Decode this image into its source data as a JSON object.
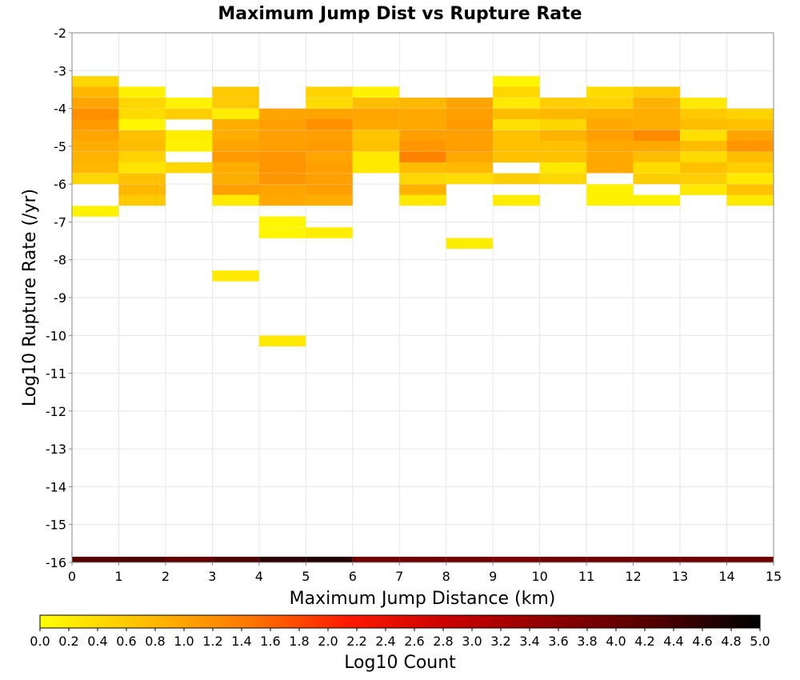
{
  "chart_data": {
    "type": "heatmap",
    "title": "Maximum Jump Dist vs Rupture Rate",
    "xlabel": "Maximum Jump Distance (km)",
    "ylabel": "Log10 Rupture Rate (/yr)",
    "xlim": [
      0,
      15
    ],
    "ylim": [
      -16,
      -2
    ],
    "x_ticks": [
      "0",
      "1",
      "2",
      "3",
      "4",
      "5",
      "6",
      "7",
      "8",
      "9",
      "10",
      "11",
      "12",
      "13",
      "14",
      "15"
    ],
    "y_ticks": [
      "-2",
      "-3",
      "-4",
      "-5",
      "-6",
      "-7",
      "-8",
      "-9",
      "-10",
      "-11",
      "-12",
      "-13",
      "-14",
      "-15",
      "-16"
    ],
    "grid": true,
    "x_bin_width": 1,
    "y_bin_height": 0.2857,
    "colorbar": {
      "label": "Log10 Count",
      "range": [
        0,
        5
      ],
      "ticks": [
        "0.0",
        "0.2",
        "0.4",
        "0.6",
        "0.8",
        "1.0",
        "1.2",
        "1.4",
        "1.6",
        "1.8",
        "2.0",
        "2.2",
        "2.4",
        "2.6",
        "2.8",
        "3.0",
        "3.2",
        "3.4",
        "3.6",
        "3.8",
        "4.0",
        "4.2",
        "4.4",
        "4.6",
        "4.8",
        "5.0"
      ],
      "colors": [
        "#ffff00",
        "#ffc000",
        "#ff7a00",
        "#ff1a00",
        "#c80000",
        "#8c0000",
        "#500000",
        "#000000"
      ]
    },
    "cells": [
      [
        0,
        -3.43,
        0.45
      ],
      [
        0,
        -3.71,
        0.8
      ],
      [
        0,
        -4.0,
        1.0
      ],
      [
        0,
        -4.29,
        1.2
      ],
      [
        0,
        -4.57,
        1.1
      ],
      [
        0,
        -4.86,
        1.0
      ],
      [
        0,
        -5.14,
        0.9
      ],
      [
        0,
        -5.43,
        0.85
      ],
      [
        0,
        -5.71,
        0.8
      ],
      [
        0,
        -6.0,
        0.45
      ],
      [
        0,
        -6.86,
        0.15
      ],
      [
        1,
        -3.71,
        0.15
      ],
      [
        1,
        -4.0,
        0.45
      ],
      [
        1,
        -4.29,
        0.4
      ],
      [
        1,
        -4.57,
        0.1
      ],
      [
        1,
        -4.86,
        0.7
      ],
      [
        1,
        -5.14,
        0.75
      ],
      [
        1,
        -5.43,
        0.5
      ],
      [
        1,
        -5.71,
        0.3
      ],
      [
        1,
        -6.0,
        0.7
      ],
      [
        1,
        -6.29,
        0.8
      ],
      [
        1,
        -6.57,
        0.6
      ],
      [
        2,
        -4.0,
        0.15
      ],
      [
        2,
        -4.29,
        0.55
      ],
      [
        2,
        -4.86,
        0.2
      ],
      [
        2,
        -5.14,
        0.15
      ],
      [
        2,
        -5.71,
        0.45
      ],
      [
        3,
        -3.71,
        0.6
      ],
      [
        3,
        -4.0,
        0.6
      ],
      [
        3,
        -4.29,
        0.2
      ],
      [
        3,
        -4.57,
        0.9
      ],
      [
        3,
        -4.86,
        0.9
      ],
      [
        3,
        -5.14,
        1.0
      ],
      [
        3,
        -5.43,
        1.1
      ],
      [
        3,
        -5.71,
        0.9
      ],
      [
        3,
        -6.0,
        0.9
      ],
      [
        3,
        -6.29,
        1.05
      ],
      [
        3,
        -6.57,
        0.25
      ],
      [
        3,
        -8.57,
        0.25
      ],
      [
        4,
        -4.29,
        1.0
      ],
      [
        4,
        -4.57,
        1.05
      ],
      [
        4,
        -4.86,
        1.05
      ],
      [
        4,
        -5.14,
        1.05
      ],
      [
        4,
        -5.43,
        1.15
      ],
      [
        4,
        -5.71,
        1.15
      ],
      [
        4,
        -6.0,
        1.15
      ],
      [
        4,
        -6.29,
        1.0
      ],
      [
        4,
        -6.57,
        0.95
      ],
      [
        4,
        -7.14,
        0.1
      ],
      [
        4,
        -7.43,
        0.1
      ],
      [
        4,
        -10.29,
        0.25
      ],
      [
        5,
        -3.71,
        0.5
      ],
      [
        5,
        -4.0,
        0.4
      ],
      [
        5,
        -4.29,
        1.0
      ],
      [
        5,
        -4.57,
        1.2
      ],
      [
        5,
        -4.86,
        1.05
      ],
      [
        5,
        -5.14,
        1.1
      ],
      [
        5,
        -5.43,
        1.0
      ],
      [
        5,
        -5.71,
        1.05
      ],
      [
        5,
        -6.0,
        1.05
      ],
      [
        5,
        -6.29,
        1.05
      ],
      [
        5,
        -6.57,
        0.9
      ],
      [
        5,
        -7.43,
        0.2
      ],
      [
        6,
        -3.71,
        0.15
      ],
      [
        6,
        -4.0,
        0.75
      ],
      [
        6,
        -4.29,
        1.0
      ],
      [
        6,
        -4.57,
        0.95
      ],
      [
        6,
        -4.86,
        0.65
      ],
      [
        6,
        -5.14,
        0.7
      ],
      [
        6,
        -5.43,
        0.25
      ],
      [
        6,
        -5.71,
        0.25
      ],
      [
        7,
        -4.0,
        0.8
      ],
      [
        7,
        -4.29,
        0.95
      ],
      [
        7,
        -4.57,
        0.95
      ],
      [
        7,
        -4.86,
        1.05
      ],
      [
        7,
        -5.14,
        1.15
      ],
      [
        7,
        -5.43,
        1.35
      ],
      [
        7,
        -5.71,
        0.75
      ],
      [
        7,
        -6.0,
        0.45
      ],
      [
        7,
        -6.29,
        0.85
      ],
      [
        7,
        -6.57,
        0.25
      ],
      [
        8,
        -4.0,
        1.0
      ],
      [
        8,
        -4.29,
        1.05
      ],
      [
        8,
        -4.57,
        1.1
      ],
      [
        8,
        -4.86,
        1.05
      ],
      [
        8,
        -5.14,
        1.05
      ],
      [
        8,
        -5.43,
        0.95
      ],
      [
        8,
        -5.71,
        0.8
      ],
      [
        8,
        -6.0,
        0.4
      ],
      [
        8,
        -7.71,
        0.2
      ],
      [
        9,
        -3.43,
        0.1
      ],
      [
        9,
        -3.71,
        0.45
      ],
      [
        9,
        -4.0,
        0.25
      ],
      [
        9,
        -4.29,
        0.75
      ],
      [
        9,
        -4.57,
        0.35
      ],
      [
        9,
        -4.86,
        0.7
      ],
      [
        9,
        -5.14,
        0.7
      ],
      [
        9,
        -5.43,
        0.7
      ],
      [
        9,
        -6.0,
        0.55
      ],
      [
        9,
        -6.57,
        0.2
      ],
      [
        10,
        -4.0,
        0.55
      ],
      [
        10,
        -4.29,
        0.8
      ],
      [
        10,
        -4.57,
        0.45
      ],
      [
        10,
        -4.86,
        0.85
      ],
      [
        10,
        -5.14,
        0.7
      ],
      [
        10,
        -5.43,
        0.7
      ],
      [
        10,
        -5.71,
        0.25
      ],
      [
        10,
        -6.0,
        0.45
      ],
      [
        11,
        -3.71,
        0.4
      ],
      [
        11,
        -4.0,
        0.5
      ],
      [
        11,
        -4.29,
        0.85
      ],
      [
        11,
        -4.57,
        0.95
      ],
      [
        11,
        -4.86,
        1.05
      ],
      [
        11,
        -5.14,
        0.95
      ],
      [
        11,
        -5.43,
        0.95
      ],
      [
        11,
        -5.71,
        0.95
      ],
      [
        11,
        -6.29,
        0.15
      ],
      [
        11,
        -6.57,
        0.15
      ],
      [
        12,
        -3.71,
        0.6
      ],
      [
        12,
        -4.0,
        0.85
      ],
      [
        12,
        -4.29,
        0.9
      ],
      [
        12,
        -4.57,
        0.9
      ],
      [
        12,
        -4.86,
        1.25
      ],
      [
        12,
        -5.14,
        0.95
      ],
      [
        12,
        -5.43,
        0.75
      ],
      [
        12,
        -5.71,
        0.4
      ],
      [
        12,
        -6.0,
        0.55
      ],
      [
        12,
        -6.57,
        0.15
      ],
      [
        13,
        -4.0,
        0.25
      ],
      [
        13,
        -4.29,
        0.6
      ],
      [
        13,
        -4.57,
        0.75
      ],
      [
        13,
        -4.86,
        0.35
      ],
      [
        13,
        -5.14,
        0.75
      ],
      [
        13,
        -5.43,
        0.4
      ],
      [
        13,
        -5.71,
        0.7
      ],
      [
        13,
        -6.0,
        0.55
      ],
      [
        13,
        -6.29,
        0.25
      ],
      [
        14,
        -4.29,
        0.5
      ],
      [
        14,
        -4.57,
        0.7
      ],
      [
        14,
        -4.86,
        1.0
      ],
      [
        14,
        -5.14,
        1.15
      ],
      [
        14,
        -5.43,
        0.75
      ],
      [
        14,
        -5.71,
        0.55
      ],
      [
        14,
        -6.0,
        0.25
      ],
      [
        14,
        -6.29,
        0.7
      ],
      [
        14,
        -6.57,
        0.25
      ]
    ],
    "bottom_row": {
      "y_bin": -16,
      "values": [
        4.2,
        4.3,
        4.1,
        4.3,
        4.6,
        4.7,
        3.9,
        3.9,
        3.9,
        3.8,
        3.9,
        3.9,
        3.9,
        3.9,
        3.9
      ]
    }
  }
}
